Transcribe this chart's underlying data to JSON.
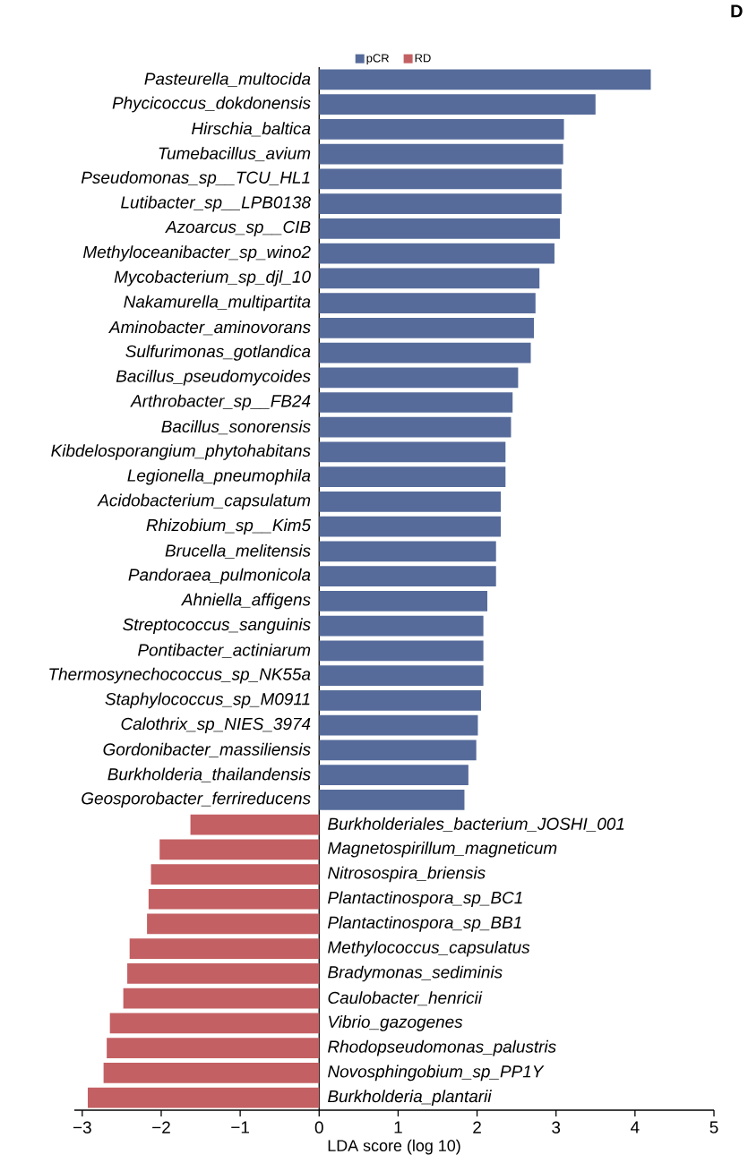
{
  "chart_data": {
    "type": "bar",
    "orientation": "horizontal",
    "xlabel": "LDA score (log 10)",
    "legend": "top",
    "annotations": [
      "D"
    ],
    "categories": [
      "Pasteurella_multocida",
      "Phycicoccus_dokdonensis",
      "Hirschia_baltica",
      "Tumebacillus_avium",
      "Pseudomonas_sp__TCU_HL1",
      "Lutibacter_sp__LPB0138",
      "Azoarcus_sp__CIB",
      "Methyloceanibacter_sp_wino2",
      "Mycobacterium_sp_djl_10",
      "Nakamurella_multipartita",
      "Aminobacter_aminovorans",
      "Sulfurimonas_gotlandica",
      "Bacillus_pseudomycoides",
      "Arthrobacter_sp__FB24",
      "Bacillus_sonorensis",
      "Kibdelosporangium_phytohabitans",
      "Legionella_pneumophila",
      "Acidobacterium_capsulatum",
      "Rhizobium_sp__Kim5",
      "Brucella_melitensis",
      "Pandoraea_pulmonicola",
      "Ahniella_affigens",
      "Streptococcus_sanguinis",
      "Pontibacter_actiniarum",
      "Thermosynechococcus_sp_NK55a",
      "Staphylococcus_sp_M0911",
      "Calothrix_sp_NIES_3974",
      "Gordonibacter_massiliensis",
      "Burkholderia_thailandensis",
      "Geosporobacter_ferrireducens",
      "Burkholderiales_bacterium_JOSHI_001",
      "Magnetospirillum_magneticum",
      "Nitrosospira_briensis",
      "Plantactinospora_sp_BC1",
      "Plantactinospora_sp_BB1",
      "Methylococcus_capsulatus",
      "Bradymonas_sediminis",
      "Caulobacter_henricii",
      "Vibrio_gazogenes",
      "Rhodopseudomonas_palustris",
      "Novosphingobium_sp_PP1Y",
      "Burkholderia_plantarii"
    ],
    "series": [
      {
        "name": "pCR",
        "color": "#566b9a",
        "values": [
          4.2,
          3.5,
          3.1,
          3.09,
          3.07,
          3.07,
          3.05,
          2.98,
          2.79,
          2.74,
          2.72,
          2.68,
          2.52,
          2.45,
          2.43,
          2.36,
          2.36,
          2.3,
          2.3,
          2.24,
          2.24,
          2.13,
          2.08,
          2.08,
          2.08,
          2.05,
          2.01,
          1.99,
          1.89,
          1.84,
          null,
          null,
          null,
          null,
          null,
          null,
          null,
          null,
          null,
          null,
          null,
          null
        ]
      },
      {
        "name": "RD",
        "color": "#c36063",
        "values": [
          null,
          null,
          null,
          null,
          null,
          null,
          null,
          null,
          null,
          null,
          null,
          null,
          null,
          null,
          null,
          null,
          null,
          null,
          null,
          null,
          null,
          null,
          null,
          null,
          null,
          null,
          null,
          null,
          null,
          null,
          -1.63,
          -2.02,
          -2.13,
          -2.16,
          -2.18,
          -2.4,
          -2.43,
          -2.48,
          -2.65,
          -2.69,
          -2.73,
          -2.93
        ]
      }
    ],
    "xlim": [
      -3.1,
      5
    ],
    "xticks": [
      {
        "value": -3,
        "label": "−3"
      },
      {
        "value": -2,
        "label": "−2"
      },
      {
        "value": -1,
        "label": "−1"
      },
      0,
      1,
      2,
      3,
      4,
      5
    ]
  }
}
